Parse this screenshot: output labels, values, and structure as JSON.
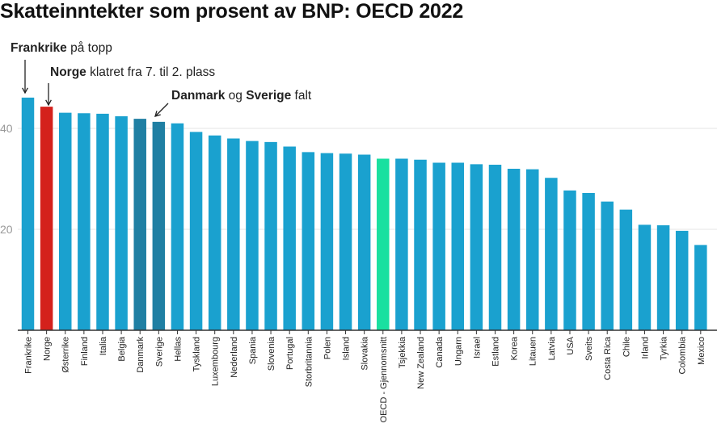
{
  "chart_data": {
    "type": "bar",
    "title": "Skatteinntekter som prosent av BNP: OECD 2022",
    "categories": [
      "Frankrike",
      "Norge",
      "Østerrike",
      "Finland",
      "Italia",
      "Belgia",
      "Danmark",
      "Sverige",
      "Hellas",
      "Tyskland",
      "Luxembourg",
      "Nederland",
      "Spania",
      "Slovenia",
      "Portugal",
      "Storbritannia",
      "Polen",
      "Island",
      "Slovakia",
      "OECD - Gjennomsnitt",
      "Tsjekkia",
      "New Zealand",
      "Canada",
      "Ungarn",
      "Israel",
      "Estland",
      "Korea",
      "Litauen",
      "Latvia",
      "USA",
      "Sveits",
      "Costa Rica",
      "Chile",
      "Irland",
      "Tyrkia",
      "Colombia",
      "Mexico"
    ],
    "values": [
      46.1,
      44.3,
      43.1,
      43.0,
      42.9,
      42.4,
      41.9,
      41.3,
      41.0,
      39.3,
      38.6,
      38.0,
      37.5,
      37.3,
      36.4,
      35.3,
      35.1,
      35.0,
      34.8,
      34.0,
      34.0,
      33.8,
      33.2,
      33.2,
      32.9,
      32.8,
      32.0,
      31.9,
      30.2,
      27.7,
      27.2,
      25.5,
      23.9,
      20.9,
      20.8,
      19.7,
      16.9
    ],
    "colors": {
      "default": "#1aa1cf",
      "Norge": "#d4211c",
      "Danmark": "#1f7fa3",
      "Sverige": "#1f7fa3",
      "OECD - Gjennomsnitt": "#19e0a0"
    },
    "yticks": [
      20,
      40
    ],
    "ylim": [
      0,
      47
    ],
    "grid": true,
    "annotations": [
      {
        "target": "Frankrike",
        "parts": [
          {
            "text": "Frankrike",
            "bold": true
          },
          {
            "text": " på topp",
            "bold": false
          }
        ]
      },
      {
        "target": "Norge",
        "parts": [
          {
            "text": "Norge",
            "bold": true
          },
          {
            "text": " klatret fra 7. til 2. plass",
            "bold": false
          }
        ]
      },
      {
        "target": "Sverige",
        "parts": [
          {
            "text": "Danmark",
            "bold": true
          },
          {
            "text": " og ",
            "bold": false
          },
          {
            "text": "Sverige",
            "bold": true
          },
          {
            "text": " falt",
            "bold": false
          }
        ]
      }
    ]
  }
}
